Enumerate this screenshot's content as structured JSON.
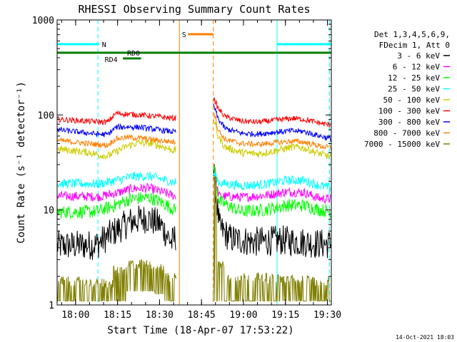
{
  "chart_data": {
    "type": "line",
    "title": "RHESSI Observing Summary Count Rates",
    "xlabel": "Start Time (18-Apr-07 17:53:22)",
    "ylabel": "Count Rate (s⁻¹ detector⁻¹)",
    "x_unit": "minutes after 17:53:22",
    "xlim": [
      0,
      98
    ],
    "ylim": [
      1,
      1000
    ],
    "y_scale": "log",
    "x_ticks": [
      {
        "label": "18:00",
        "t": 6.6
      },
      {
        "label": "18:15",
        "t": 21.6
      },
      {
        "label": "18:30",
        "t": 36.6
      },
      {
        "label": "18:45",
        "t": 51.6
      },
      {
        "label": "19:00",
        "t": 66.6
      },
      {
        "label": "19:15",
        "t": 81.6
      },
      {
        "label": "19:30",
        "t": 96.6
      }
    ],
    "y_ticks": [
      {
        "label": "1",
        "v": 1
      },
      {
        "label": "10",
        "v": 10
      },
      {
        "label": "100",
        "v": 100
      },
      {
        "label": "1000",
        "v": 1000
      }
    ],
    "legend": {
      "position": "right",
      "header": [
        "Det 1,3,4,5,6,9,",
        "FDecim 1, Att 0"
      ]
    },
    "gap": [
      42.6,
      55.8
    ],
    "series": [
      {
        "name": "3 - 6 keV",
        "color": "#000000",
        "noise": 0.16,
        "points": [
          [
            0,
            4.2
          ],
          [
            14,
            4.3
          ],
          [
            20,
            5.8
          ],
          [
            26,
            7.5
          ],
          [
            32,
            8.2
          ],
          [
            37,
            7.0
          ],
          [
            41,
            4.5
          ],
          [
            56,
            25
          ],
          [
            58,
            6.5
          ],
          [
            62,
            5.0
          ],
          [
            70,
            4.6
          ],
          [
            80,
            4.8
          ],
          [
            88,
            4.6
          ],
          [
            94,
            4.4
          ],
          [
            98,
            4.4
          ]
        ]
      },
      {
        "name": "6 - 12 keV",
        "color": "#ff00ff",
        "noise": 0.05,
        "points": [
          [
            0,
            14
          ],
          [
            15,
            13.8
          ],
          [
            21,
            15
          ],
          [
            27,
            16.8
          ],
          [
            33,
            17
          ],
          [
            39,
            15
          ],
          [
            42,
            14
          ],
          [
            56,
            22
          ],
          [
            58,
            14
          ],
          [
            66,
            13.6
          ],
          [
            74,
            14.2
          ],
          [
            82,
            15.5
          ],
          [
            88,
            15.3
          ],
          [
            94,
            13.2
          ],
          [
            98,
            13
          ]
        ]
      },
      {
        "name": "12 - 25 keV",
        "color": "#00ff00",
        "noise": 0.07,
        "points": [
          [
            0,
            9.5
          ],
          [
            14,
            9.6
          ],
          [
            20,
            11
          ],
          [
            26,
            13
          ],
          [
            33,
            13.5
          ],
          [
            38,
            11.8
          ],
          [
            42,
            10
          ],
          [
            56,
            28
          ],
          [
            58,
            12.2
          ],
          [
            66,
            9.6
          ],
          [
            74,
            10
          ],
          [
            82,
            11.2
          ],
          [
            88,
            11.2
          ],
          [
            94,
            10
          ],
          [
            98,
            9.6
          ]
        ]
      },
      {
        "name": "25 - 50 keV",
        "color": "#00ffff",
        "noise": 0.05,
        "points": [
          [
            0,
            19
          ],
          [
            15,
            18.8
          ],
          [
            21,
            20.5
          ],
          [
            27,
            22.5
          ],
          [
            33,
            22.7
          ],
          [
            39,
            20.5
          ],
          [
            42,
            19.5
          ],
          [
            56,
            24
          ],
          [
            58,
            19.2
          ],
          [
            66,
            18
          ],
          [
            74,
            18.6
          ],
          [
            82,
            20.5
          ],
          [
            88,
            20.5
          ],
          [
            94,
            18
          ],
          [
            98,
            17
          ]
        ]
      },
      {
        "name": "50 - 100 keV",
        "color": "#cccc00",
        "noise": 0.04,
        "points": [
          [
            0,
            44
          ],
          [
            12,
            40
          ],
          [
            15,
            38
          ],
          [
            18,
            37
          ],
          [
            21,
            41
          ],
          [
            25,
            47
          ],
          [
            29,
            51
          ],
          [
            34,
            50
          ],
          [
            38,
            46
          ],
          [
            42,
            42
          ],
          [
            56,
            90
          ],
          [
            57.5,
            60
          ],
          [
            60,
            46
          ],
          [
            66,
            40
          ],
          [
            72,
            39
          ],
          [
            78,
            42
          ],
          [
            84,
            46
          ],
          [
            88,
            45
          ],
          [
            94,
            39
          ],
          [
            98,
            36
          ]
        ]
      },
      {
        "name": "100 - 300 keV",
        "color": "#ff0000",
        "noise": 0.03,
        "points": [
          [
            0,
            90
          ],
          [
            8,
            87
          ],
          [
            14,
            85
          ],
          [
            18,
            84
          ],
          [
            21,
            104
          ],
          [
            25,
            102
          ],
          [
            30,
            100
          ],
          [
            36,
            96
          ],
          [
            42,
            92
          ],
          [
            56,
            150
          ],
          [
            57.5,
            118
          ],
          [
            60,
            96
          ],
          [
            66,
            86
          ],
          [
            72,
            84
          ],
          [
            78,
            88
          ],
          [
            84,
            92
          ],
          [
            88,
            90
          ],
          [
            94,
            82
          ],
          [
            98,
            78
          ]
        ]
      },
      {
        "name": "300 - 800 keV",
        "color": "#0000ff",
        "noise": 0.03,
        "points": [
          [
            0,
            70
          ],
          [
            8,
            66
          ],
          [
            14,
            63
          ],
          [
            18,
            62
          ],
          [
            21,
            74
          ],
          [
            25,
            75
          ],
          [
            30,
            74
          ],
          [
            36,
            70
          ],
          [
            42,
            66
          ],
          [
            56,
            125
          ],
          [
            57.5,
            92
          ],
          [
            60,
            72
          ],
          [
            66,
            64
          ],
          [
            72,
            63
          ],
          [
            78,
            66
          ],
          [
            84,
            68
          ],
          [
            88,
            67
          ],
          [
            94,
            60
          ],
          [
            98,
            56
          ]
        ]
      },
      {
        "name": "800 - 7000 keV",
        "color": "#ff7f00",
        "noise": 0.03,
        "points": [
          [
            0,
            54
          ],
          [
            8,
            51
          ],
          [
            14,
            49
          ],
          [
            18,
            48
          ],
          [
            21,
            56
          ],
          [
            25,
            58
          ],
          [
            30,
            57
          ],
          [
            36,
            54
          ],
          [
            42,
            52
          ],
          [
            56,
            110
          ],
          [
            57.5,
            70
          ],
          [
            60,
            55
          ],
          [
            66,
            50
          ],
          [
            72,
            49
          ],
          [
            78,
            51
          ],
          [
            84,
            53
          ],
          [
            88,
            52
          ],
          [
            94,
            47
          ],
          [
            98,
            45
          ]
        ]
      },
      {
        "name": "7000 - 15000 keV",
        "color": "#807f00",
        "noise": 0.0,
        "points": [
          [
            0,
            1.6
          ],
          [
            98,
            1.6
          ]
        ]
      }
    ],
    "annotations": {
      "flag_bars": [
        {
          "label": "N",
          "color": "#00ffff",
          "y_frac": 0.085,
          "ranges": [
            [
              0,
              15
            ]
          ],
          "label_at": 16
        },
        {
          "label": "N",
          "color": "#00ffff",
          "y_frac": 0.085,
          "ranges": [
            [
              78.6,
              98
            ]
          ],
          "label_at": null
        },
        {
          "label": "S",
          "color": "#ff7f00",
          "y_frac": 0.05,
          "ranges": [
            [
              46.8,
              55.8
            ]
          ],
          "label_at": 44.6
        },
        {
          "label": "RD0",
          "color": "#008000",
          "y_frac": 0.115,
          "ranges": [
            [
              0,
              98
            ]
          ],
          "label_at": 25
        },
        {
          "label": "RD4",
          "color": "#008000",
          "y_frac": 0.135,
          "ranges": [
            [
              23.5,
              30
            ]
          ],
          "label_at": 17
        }
      ],
      "vlines": [
        {
          "t": 0,
          "color": "#00ffff",
          "dash": false
        },
        {
          "t": 14.6,
          "color": "#00ffff",
          "dash": true
        },
        {
          "t": 43.7,
          "color": "#ff7f00",
          "dash": false
        },
        {
          "t": 55.8,
          "color": "#ff7f00",
          "dash": true
        },
        {
          "t": 78.6,
          "color": "#00ffff",
          "dash": false
        },
        {
          "t": 97.3,
          "color": "#00ffff",
          "dash": true
        }
      ]
    },
    "footer": "14-Oct-2021 18:03",
    "grid": false
  }
}
